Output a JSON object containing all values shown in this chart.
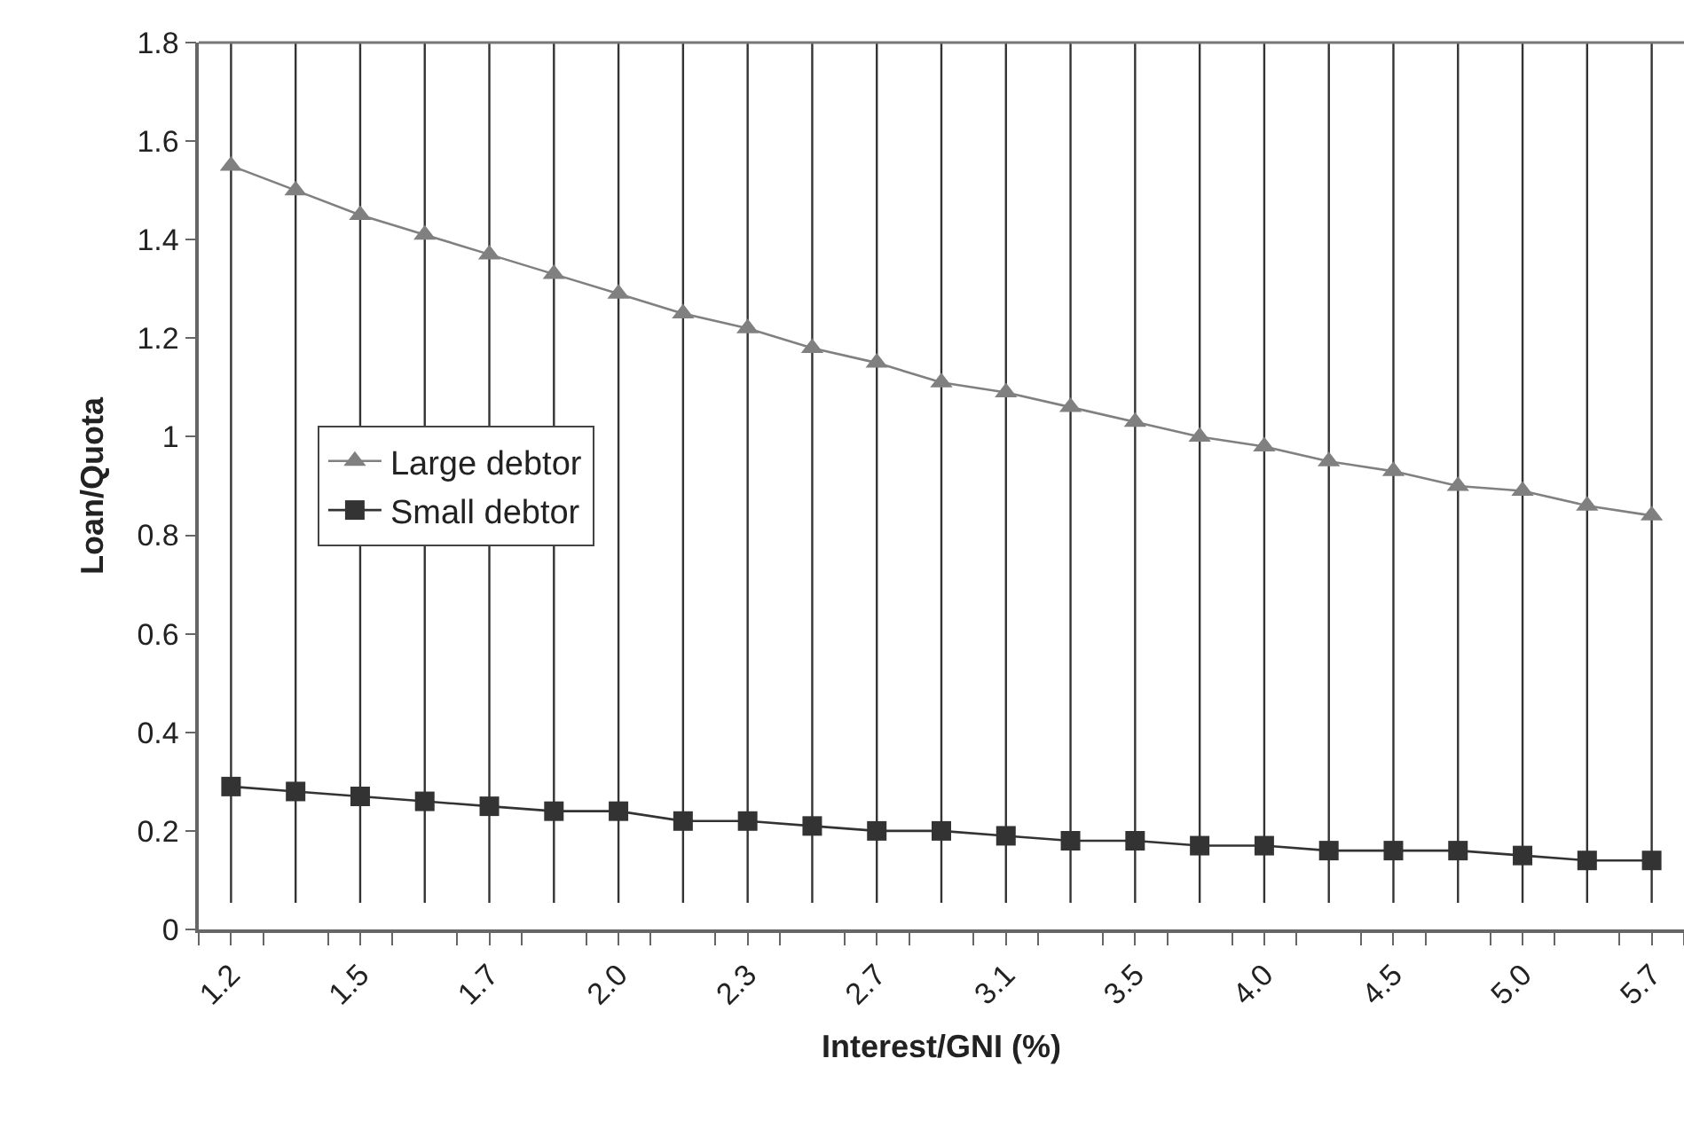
{
  "chart_data": {
    "type": "line",
    "xlabel": "Interest/GNI (%)",
    "ylabel": "Loan/Quota",
    "categories": [
      "1.2",
      null,
      "1.5",
      null,
      "1.7",
      null,
      "2.0",
      null,
      "2.3",
      null,
      "2.7",
      null,
      "3.1",
      null,
      "3.5",
      null,
      "4.0",
      null,
      "4.5",
      null,
      "5.0",
      null,
      "5.7"
    ],
    "series": [
      {
        "name": "Large debtor",
        "color": "#808080",
        "marker": "triangle",
        "values": [
          1.55,
          1.5,
          1.45,
          1.41,
          1.37,
          1.33,
          1.29,
          1.25,
          1.22,
          1.18,
          1.15,
          1.11,
          1.09,
          1.06,
          1.03,
          1.0,
          0.98,
          0.95,
          0.93,
          0.9,
          0.89,
          0.86,
          0.84
        ]
      },
      {
        "name": "Small debtor",
        "color": "#333333",
        "marker": "square",
        "values": [
          0.29,
          0.28,
          0.27,
          0.26,
          0.25,
          0.24,
          0.24,
          0.22,
          0.22,
          0.21,
          0.2,
          0.2,
          0.19,
          0.18,
          0.18,
          0.17,
          0.17,
          0.16,
          0.16,
          0.16,
          0.15,
          0.14,
          0.14
        ]
      }
    ],
    "ylim": [
      0,
      1.8
    ],
    "yticks": [
      0,
      0.2,
      0.4,
      0.6,
      0.8,
      1,
      1.2,
      1.4,
      1.6,
      1.8
    ],
    "grid": "x",
    "legend": "left",
    "line_style": "solid"
  }
}
